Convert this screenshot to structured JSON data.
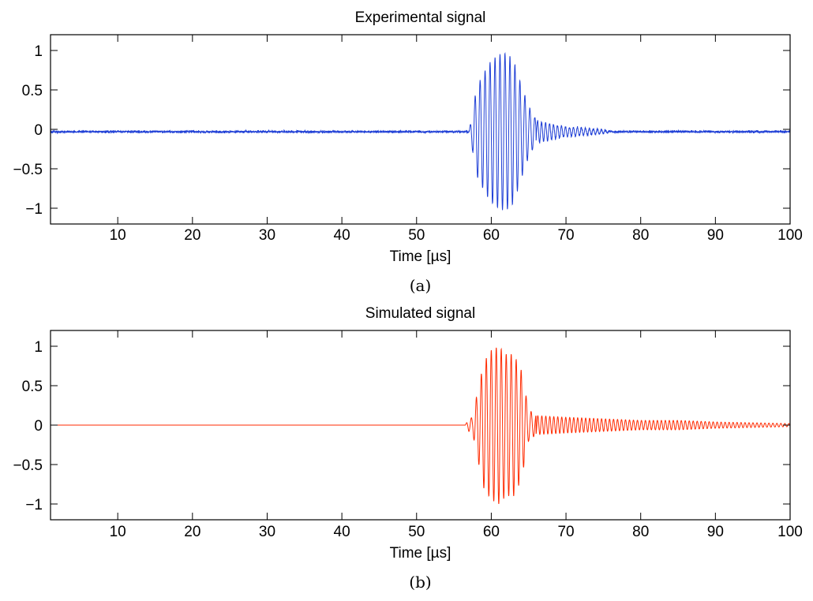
{
  "chart_data": [
    {
      "type": "line",
      "title": "Experimental signal",
      "xlabel": "Time [µs]",
      "ylabel": "",
      "caption": "(a)",
      "xlim": [
        1,
        100
      ],
      "ylim": [
        -1.2,
        1.2
      ],
      "xticks": [
        10,
        20,
        30,
        40,
        50,
        60,
        70,
        80,
        90,
        100
      ],
      "yticks": [
        1,
        0.5,
        0,
        -0.5,
        -1
      ],
      "ytick_labels": [
        "1",
        "0.5",
        "0",
        "−0.5",
        "−1"
      ],
      "grid": false,
      "series": [
        {
          "color": "#1f3fd6",
          "baseline": -0.03,
          "noise_amplitude": 0.02,
          "burst": {
            "carrier_frequency_mhz": 1.5,
            "onset": 57,
            "peak_time": 62,
            "peak_amplitude": 1.0,
            "min_amplitude": -1.0,
            "main_end": 66
          },
          "tail": {
            "start": 66,
            "end": 76,
            "amplitude": 0.1
          },
          "envelope": [
            [
              57,
              0.0
            ],
            [
              57.5,
              0.25
            ],
            [
              58,
              0.55
            ],
            [
              59,
              0.75
            ],
            [
              60,
              0.9
            ],
            [
              61,
              0.98
            ],
            [
              62,
              1.0
            ],
            [
              63,
              0.9
            ],
            [
              64,
              0.6
            ],
            [
              65,
              0.32
            ],
            [
              66,
              0.15
            ],
            [
              67,
              0.12
            ],
            [
              68,
              0.1
            ],
            [
              70,
              0.06
            ],
            [
              72,
              0.05
            ],
            [
              74,
              0.035
            ],
            [
              76,
              0.01
            ]
          ]
        }
      ]
    },
    {
      "type": "line",
      "title": "Simulated signal",
      "xlabel": "Time [µs]",
      "ylabel": "",
      "caption": "(b)",
      "xlim": [
        1,
        100
      ],
      "ylim": [
        -1.2,
        1.2
      ],
      "xticks": [
        10,
        20,
        30,
        40,
        50,
        60,
        70,
        80,
        90,
        100
      ],
      "yticks": [
        1,
        0.5,
        0,
        -0.5,
        -1
      ],
      "ytick_labels": [
        "1",
        "0.5",
        "0",
        "−0.5",
        "−1"
      ],
      "grid": false,
      "series": [
        {
          "color": "#ff2a00",
          "baseline": 0.0,
          "noise_amplitude": 0.0,
          "burst": {
            "carrier_frequency_mhz": 1.5,
            "onset": 56.5,
            "peak_time": 60.5,
            "peak_amplitude": 1.0,
            "min_amplitude": -1.0,
            "main_end": 66
          },
          "tail": {
            "start": 66,
            "end": 100,
            "amplitude": 0.1
          },
          "envelope": [
            [
              56.5,
              0.0
            ],
            [
              57,
              0.08
            ],
            [
              57.5,
              0.1
            ],
            [
              58,
              0.35
            ],
            [
              59,
              0.8
            ],
            [
              60,
              0.95
            ],
            [
              61,
              1.0
            ],
            [
              62,
              0.9
            ],
            [
              63,
              0.9
            ],
            [
              64,
              0.7
            ],
            [
              65,
              0.2
            ],
            [
              66,
              0.12
            ],
            [
              70,
              0.1
            ],
            [
              75,
              0.08
            ],
            [
              80,
              0.06
            ],
            [
              85,
              0.06
            ],
            [
              90,
              0.04
            ],
            [
              95,
              0.03
            ],
            [
              100,
              0.02
            ]
          ]
        }
      ]
    }
  ]
}
